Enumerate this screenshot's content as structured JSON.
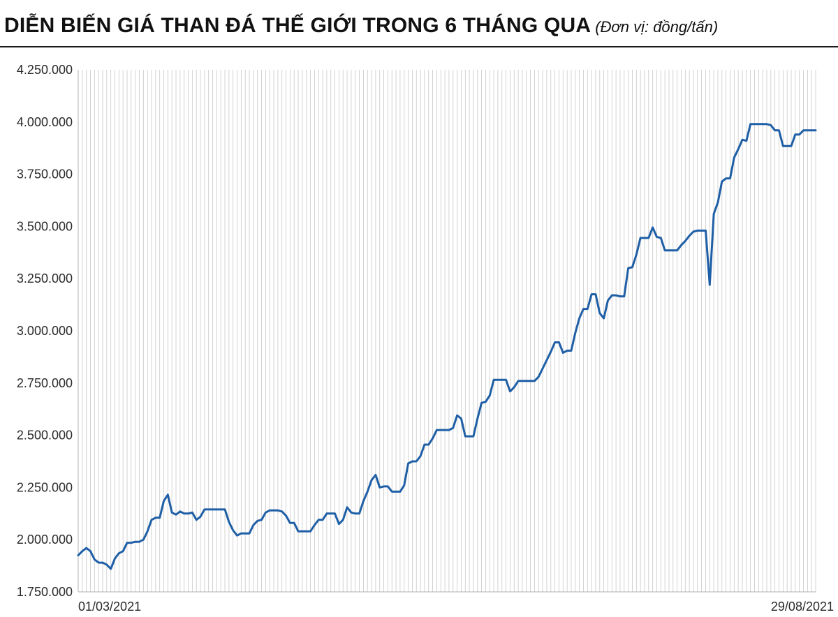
{
  "header": {
    "title": "DIỄN BIẾN GIÁ THAN ĐÁ THẾ GIỚI TRONG 6 THÁNG QUA",
    "unit": "(Đơn vị: đồng/tấn)"
  },
  "colors": {
    "line": "#1f5fa6",
    "grid": "#c8c8c8",
    "axis": "#b0b0b0"
  },
  "chart_data": {
    "type": "line",
    "title": "DIỄN BIẾN GIÁ THAN ĐÁ THẾ GIỚI TRONG 6 THÁNG QUA",
    "xlabel": "",
    "ylabel": "",
    "ylim": [
      1750000,
      4250000
    ],
    "y_ticks": [
      "4.250.000",
      "4.000.000",
      "3.750.000",
      "3.500.000",
      "3.250.000",
      "3.000.000",
      "2.750.000",
      "2.500.000",
      "2.250.000",
      "2.000.000",
      "1.750.000"
    ],
    "x_labels": [
      "01/03/2021",
      "29/08/2021"
    ],
    "x_range": [
      "01/03/2021",
      "29/08/2021"
    ],
    "grid": "vertical",
    "legend": "none",
    "series": [
      {
        "values": [
          1925000,
          1945000,
          1960000,
          1945000,
          1905000,
          1890000,
          1890000,
          1880000,
          1860000,
          1910000,
          1935000,
          1945000,
          1985000,
          1985000,
          1990000,
          1990000,
          2000000,
          2040000,
          2095000,
          2105000,
          2105000,
          2185000,
          2215000,
          2130000,
          2120000,
          2135000,
          2125000,
          2125000,
          2130000,
          2095000,
          2110000,
          2145000,
          2145000,
          2145000,
          2145000,
          2145000,
          2145000,
          2085000,
          2045000,
          2020000,
          2030000,
          2030000,
          2030000,
          2070000,
          2090000,
          2095000,
          2130000,
          2140000,
          2140000,
          2140000,
          2135000,
          2115000,
          2080000,
          2080000,
          2040000,
          2040000,
          2040000,
          2040000,
          2070000,
          2095000,
          2095000,
          2125000,
          2125000,
          2125000,
          2075000,
          2095000,
          2155000,
          2130000,
          2125000,
          2125000,
          2185000,
          2230000,
          2285000,
          2310000,
          2250000,
          2255000,
          2255000,
          2230000,
          2230000,
          2230000,
          2260000,
          2365000,
          2375000,
          2375000,
          2400000,
          2455000,
          2455000,
          2485000,
          2525000,
          2525000,
          2525000,
          2525000,
          2535000,
          2595000,
          2580000,
          2495000,
          2495000,
          2495000,
          2580000,
          2655000,
          2660000,
          2690000,
          2765000,
          2765000,
          2765000,
          2765000,
          2710000,
          2730000,
          2760000,
          2760000,
          2760000,
          2760000,
          2760000,
          2780000,
          2820000,
          2860000,
          2900000,
          2945000,
          2945000,
          2895000,
          2905000,
          2905000,
          2990000,
          3060000,
          3105000,
          3105000,
          3175000,
          3175000,
          3085000,
          3060000,
          3145000,
          3170000,
          3170000,
          3165000,
          3165000,
          3300000,
          3305000,
          3365000,
          3445000,
          3445000,
          3445000,
          3495000,
          3450000,
          3445000,
          3385000,
          3385000,
          3385000,
          3385000,
          3410000,
          3430000,
          3455000,
          3475000,
          3480000,
          3480000,
          3480000,
          3220000,
          3560000,
          3615000,
          3715000,
          3730000,
          3730000,
          3830000,
          3870000,
          3915000,
          3910000,
          3990000,
          3990000,
          3990000,
          3990000,
          3990000,
          3985000,
          3960000,
          3960000,
          3885000,
          3885000,
          3885000,
          3940000,
          3940000,
          3960000,
          3960000,
          3960000,
          3960000
        ]
      }
    ]
  }
}
